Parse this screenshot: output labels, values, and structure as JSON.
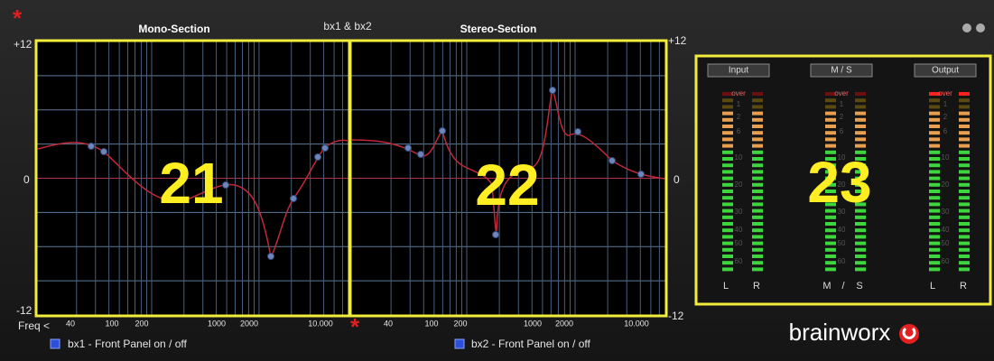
{
  "title": "bx1 & bx2",
  "marker": "*",
  "mono": {
    "title": "Mono-Section",
    "callout": "21",
    "y_labels": [
      "+12",
      "0",
      "-12"
    ],
    "freq_labels": [
      "Freq <",
      "40",
      "100",
      "200",
      "1000",
      "2000",
      "10.000"
    ],
    "toggle": "bx1 -  Front Panel on / off"
  },
  "stereo": {
    "title": "Stereo-Section",
    "callout": "22",
    "y_labels": [
      "+12",
      "0",
      "-12"
    ],
    "freq_labels": [
      "40",
      "100",
      "200",
      "1000",
      "2000",
      "10.000"
    ],
    "toggle": "bx2 -  Front Panel on / off"
  },
  "meters": {
    "callout": "23",
    "groups": [
      {
        "title": "Input",
        "channels": [
          "L",
          "R"
        ]
      },
      {
        "title": "M / S",
        "channels": [
          "M",
          "/",
          "S"
        ]
      },
      {
        "title": "Output",
        "channels": [
          "L",
          "R"
        ]
      }
    ],
    "scale": [
      "over",
      "1",
      "2",
      "6",
      "10",
      "20",
      "30",
      "40",
      "50",
      "60"
    ]
  },
  "brand": "brainworx"
}
